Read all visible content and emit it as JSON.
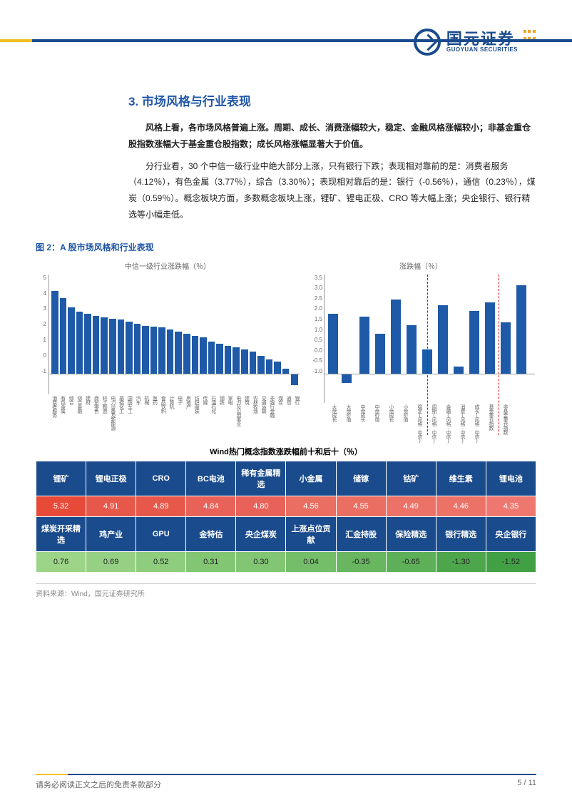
{
  "header": {
    "logo_cn": "国元证券",
    "logo_en": "GUOYUAN SECURITIES"
  },
  "section": {
    "title": "3. 市场风格与行业表现",
    "para1": "风格上看，各市场风格普遍上涨。周期、成长、消费涨幅较大，稳定、金融风格涨幅较小；非基金重仓股指数涨幅大于基金重仓股指数；成长风格涨幅显著大于价值。",
    "para2": "分行业看，30 个中信一级行业中绝大部分上涨，只有银行下跌；表现相对靠前的是：消费者服务（4.12％），有色金属（3.77％），综合（3.30％）；表现相对靠后的是：银行（-0.56％），通信（0.23％），煤炭（0.59％）。概念板块方面，多数概念板块上涨，锂矿、锂电正极、CRO 等大幅上涨；央企银行、银行精选等小幅走低。"
  },
  "figure": {
    "caption": "图 2：A 股市场风格和行业表现",
    "chart1": {
      "title": "中信一级行业涨跌幅（％）",
      "type": "bar",
      "ylim": [
        -1,
        5
      ],
      "yticks": [
        "5",
        "4",
        "3",
        "2",
        "1",
        "0",
        "-1"
      ],
      "bar_color": "#1e5aa8",
      "categories": [
        "消费者服务",
        "有色金属",
        "综合",
        "综合金融",
        "建材",
        "商贸零售",
        "轻工制造",
        "电力设备及新能源",
        "基础化工",
        "国防军工",
        "汽车",
        "机械",
        "医药",
        "食品饮料",
        "计算机",
        "电子",
        "房地产",
        "纺织服装",
        "传媒",
        "石油石化",
        "钢铁",
        "家电",
        "电力及公用事业",
        "建筑",
        "农林牧渔",
        "交通运输",
        "非银行金融",
        "煤炭",
        "通信",
        "银行"
      ],
      "values": [
        4.12,
        3.77,
        3.3,
        3.1,
        3.0,
        2.9,
        2.8,
        2.75,
        2.7,
        2.6,
        2.5,
        2.4,
        2.35,
        2.3,
        2.2,
        2.1,
        2.0,
        1.9,
        1.8,
        1.6,
        1.5,
        1.4,
        1.3,
        1.2,
        1.1,
        0.9,
        0.7,
        0.59,
        0.23,
        -0.56
      ]
    },
    "chart2": {
      "title": "涨跌幅（％）",
      "type": "bar",
      "ylim": [
        -1.0,
        3.5
      ],
      "yticks": [
        "3.5",
        "3.0",
        "2.5",
        "2.0",
        "1.5",
        "1.0",
        "0.5",
        "0.0",
        "-0.5",
        "-1.0"
      ],
      "bar_color": "#1e5aa8",
      "categories": [
        "大盘成长",
        "大盘价值",
        "中盘成长",
        "中盘价值",
        "小盘成长",
        "小盘价值",
        "稳定(风格.中信)",
        "周期(风格.中信)",
        "金融(风格.中信)",
        "消费(风格.中信)",
        "成长(风格.中信)",
        "基金重仓指数",
        "非基金重仓指数"
      ],
      "values": [
        2.1,
        -0.3,
        2.0,
        1.4,
        2.6,
        1.7,
        0.85,
        2.4,
        0.25,
        2.2,
        2.5,
        1.8,
        3.1
      ],
      "divider1_after_index": 5,
      "divider2_after_index": 10
    },
    "table": {
      "title": "Wind热门概念指数涨跌幅前十和后十（％）",
      "top_headers": [
        "锂矿",
        "锂电正极",
        "CRO",
        "BC电池",
        "稀有金属精选",
        "小金属",
        "储镓",
        "钴矿",
        "维生素",
        "锂电池"
      ],
      "top_values": [
        "5.32",
        "4.91",
        "4.89",
        "4.84",
        "4.80",
        "4.56",
        "4.55",
        "4.49",
        "4.46",
        "4.35"
      ],
      "bottom_headers": [
        "煤炭开采精选",
        "鸡产业",
        "GPU",
        "金特估",
        "央企煤炭",
        "上涨点位贡献",
        "汇金持股",
        "保险精选",
        "银行精选",
        "央企银行"
      ],
      "bottom_values": [
        "0.76",
        "0.69",
        "0.52",
        "0.31",
        "0.30",
        "0.04",
        "-0.35",
        "-0.65",
        "-1.30",
        "-1.52"
      ]
    },
    "source": "资料来源：Wind，国元证券研究所"
  },
  "footer": {
    "disclaimer": "请务必阅读正文之后的免责条款部分",
    "page": "5 / 11"
  }
}
